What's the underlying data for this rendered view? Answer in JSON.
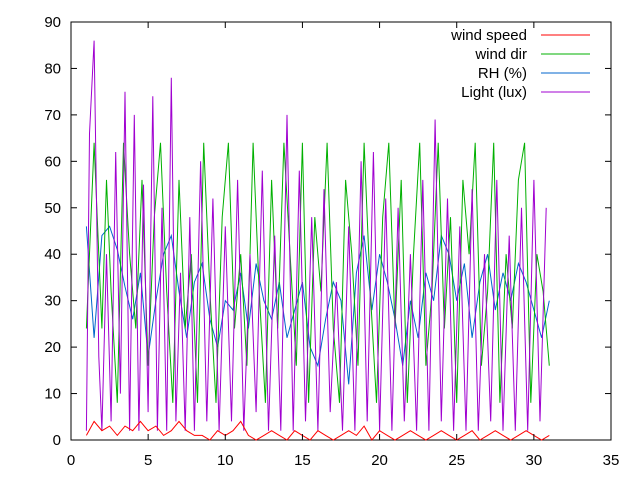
{
  "chart_data": {
    "type": "line",
    "title": "",
    "xlabel": "",
    "ylabel": "",
    "xlim": [
      0,
      35
    ],
    "ylim": [
      0,
      90
    ],
    "x_ticks": [
      0,
      5,
      10,
      15,
      20,
      25,
      30,
      35
    ],
    "y_ticks": [
      0,
      10,
      20,
      30,
      40,
      50,
      60,
      70,
      80,
      90
    ],
    "grid": false,
    "legend_position": "top-right",
    "series": [
      {
        "name": "wind speed",
        "color": "#ff0000",
        "x": [
          1.0,
          1.5,
          2.0,
          2.5,
          3.0,
          3.5,
          4.0,
          4.5,
          5.0,
          5.5,
          6.0,
          6.5,
          7.0,
          7.5,
          8.0,
          8.5,
          9.0,
          9.5,
          10.0,
          10.5,
          11.0,
          11.5,
          12.0,
          12.5,
          13.0,
          13.5,
          14.0,
          14.5,
          15.0,
          15.5,
          16.0,
          16.5,
          17.0,
          17.5,
          18.0,
          18.5,
          19.0,
          19.5,
          20.0,
          20.5,
          21.0,
          21.5,
          22.0,
          22.5,
          23.0,
          23.5,
          24.0,
          24.5,
          25.0,
          25.5,
          26.0,
          26.5,
          27.0,
          27.5,
          28.0,
          28.5,
          29.0,
          29.5,
          30.0,
          30.5,
          31.0
        ],
        "values": [
          1,
          4,
          2,
          3,
          1,
          3,
          2,
          4,
          2,
          3,
          1,
          2,
          4,
          2,
          1,
          1,
          0,
          2,
          1,
          2,
          4,
          1,
          0,
          1,
          2,
          1,
          0,
          2,
          1,
          0,
          2,
          1,
          0,
          1,
          2,
          1,
          3,
          0,
          2,
          1,
          0,
          1,
          2,
          1,
          0,
          1,
          2,
          1,
          0,
          1,
          2,
          0,
          1,
          2,
          1,
          0,
          1,
          2,
          1,
          0,
          1
        ]
      },
      {
        "name": "wind dir",
        "color": "#00b000",
        "x": [
          1.0,
          1.5,
          2.0,
          2.3,
          2.6,
          3.0,
          3.4,
          3.8,
          4.2,
          4.6,
          5.0,
          5.4,
          5.8,
          6.2,
          6.6,
          7.0,
          7.4,
          7.8,
          8.2,
          8.6,
          9.0,
          9.4,
          9.8,
          10.2,
          10.6,
          11.0,
          11.4,
          11.8,
          12.2,
          12.6,
          13.0,
          13.4,
          13.8,
          14.2,
          14.6,
          15.0,
          15.4,
          15.8,
          16.2,
          16.6,
          17.0,
          17.4,
          17.8,
          18.2,
          18.6,
          19.0,
          19.4,
          19.8,
          20.2,
          20.6,
          21.0,
          21.4,
          21.8,
          22.2,
          22.6,
          23.0,
          23.4,
          23.8,
          24.2,
          24.6,
          25.0,
          25.4,
          25.8,
          26.2,
          26.6,
          27.0,
          27.4,
          27.8,
          28.2,
          28.6,
          29.0,
          29.4,
          29.8,
          30.2,
          30.6,
          31.0
        ],
        "values": [
          24,
          64,
          24,
          56,
          32,
          8,
          64,
          40,
          24,
          56,
          16,
          48,
          64,
          32,
          8,
          56,
          24,
          40,
          8,
          64,
          32,
          8,
          48,
          64,
          24,
          40,
          16,
          64,
          32,
          8,
          56,
          24,
          64,
          40,
          16,
          64,
          8,
          48,
          32,
          64,
          24,
          8,
          56,
          40,
          16,
          64,
          32,
          8,
          48,
          64,
          24,
          56,
          8,
          40,
          64,
          16,
          32,
          64,
          24,
          48,
          8,
          56,
          40,
          64,
          16,
          32,
          64,
          8,
          40,
          24,
          56,
          64,
          8,
          40,
          32,
          16
        ]
      },
      {
        "name": "RH (%)",
        "color": "#0066cc",
        "x": [
          1.0,
          1.5,
          2.0,
          2.5,
          3.0,
          3.5,
          4.0,
          4.5,
          5.0,
          5.5,
          6.0,
          6.5,
          7.0,
          7.5,
          8.0,
          8.5,
          9.0,
          9.5,
          10.0,
          10.5,
          11.0,
          11.5,
          12.0,
          12.5,
          13.0,
          13.5,
          14.0,
          14.5,
          15.0,
          15.5,
          16.0,
          16.5,
          17.0,
          17.5,
          18.0,
          18.5,
          19.0,
          19.5,
          20.0,
          20.5,
          21.0,
          21.5,
          22.0,
          22.5,
          23.0,
          23.5,
          24.0,
          24.5,
          25.0,
          25.5,
          26.0,
          26.5,
          27.0,
          27.5,
          28.0,
          28.5,
          29.0,
          29.5,
          30.0,
          30.5,
          31.0
        ],
        "values": [
          46,
          22,
          44,
          46,
          41,
          33,
          26,
          36,
          18,
          30,
          40,
          44,
          32,
          22,
          34,
          38,
          26,
          20,
          30,
          28,
          36,
          24,
          38,
          30,
          26,
          34,
          22,
          28,
          34,
          20,
          16,
          26,
          34,
          30,
          12,
          36,
          44,
          28,
          40,
          34,
          26,
          16,
          30,
          22,
          36,
          30,
          44,
          40,
          30,
          38,
          22,
          34,
          40,
          28,
          36,
          30,
          38,
          34,
          28,
          22,
          30
        ]
      },
      {
        "name": "Light (lux)",
        "color": "#a000d0",
        "x": [
          1.0,
          1.2,
          1.5,
          1.8,
          2.0,
          2.3,
          2.6,
          2.9,
          3.2,
          3.5,
          3.8,
          4.1,
          4.4,
          4.7,
          5.0,
          5.3,
          5.6,
          5.9,
          6.2,
          6.5,
          6.8,
          7.1,
          7.4,
          7.7,
          8.0,
          8.4,
          8.8,
          9.2,
          9.6,
          10.0,
          10.4,
          10.8,
          11.2,
          11.6,
          12.0,
          12.4,
          12.8,
          13.2,
          13.6,
          14.0,
          14.4,
          14.8,
          15.2,
          15.6,
          16.0,
          16.4,
          16.8,
          17.2,
          17.6,
          18.0,
          18.4,
          18.8,
          19.2,
          19.6,
          20.0,
          20.4,
          20.8,
          21.2,
          21.6,
          22.0,
          22.4,
          22.8,
          23.2,
          23.6,
          24.0,
          24.4,
          24.8,
          25.2,
          25.6,
          26.0,
          26.4,
          26.8,
          27.2,
          27.6,
          28.0,
          28.4,
          28.8,
          29.2,
          29.6,
          30.0,
          30.4,
          30.8
        ],
        "values": [
          2,
          66,
          86,
          18,
          2,
          40,
          4,
          62,
          10,
          75,
          2,
          70,
          2,
          55,
          6,
          74,
          2,
          50,
          2,
          78,
          4,
          36,
          2,
          48,
          2,
          60,
          4,
          52,
          2,
          46,
          4,
          56,
          2,
          40,
          6,
          58,
          2,
          44,
          2,
          70,
          2,
          58,
          4,
          48,
          2,
          54,
          6,
          34,
          2,
          46,
          2,
          60,
          4,
          62,
          2,
          52,
          2,
          50,
          4,
          40,
          2,
          56,
          2,
          69,
          4,
          52,
          2,
          46,
          2,
          54,
          2,
          40,
          4,
          56,
          2,
          44,
          2,
          50,
          2,
          56,
          4,
          50
        ]
      }
    ]
  }
}
